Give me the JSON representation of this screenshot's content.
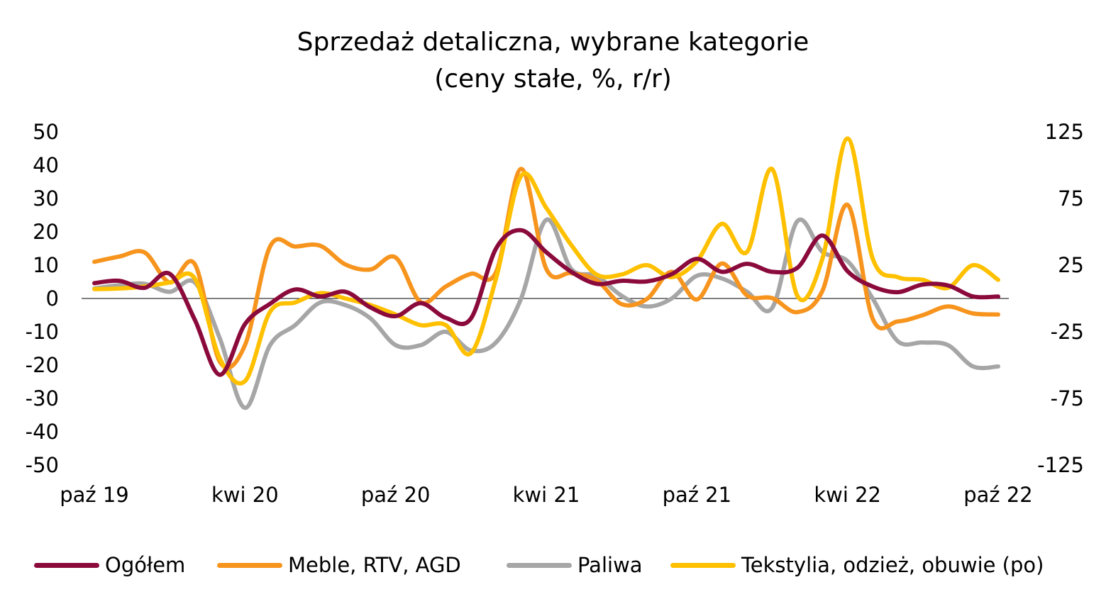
{
  "chart_data": {
    "type": "line",
    "title": "Sprzedaż detaliczna, wybrane kategorie",
    "subtitle": "(ceny stałe, %, r/r)",
    "x": [
      "paź 19",
      "lis 19",
      "gru 19",
      "sty 20",
      "lut 20",
      "mar 20",
      "kwi 20",
      "maj 20",
      "cze 20",
      "lip 20",
      "sie 20",
      "wrz 20",
      "paź 20",
      "lis 20",
      "gru 20",
      "sty 21",
      "lut 21",
      "mar 21",
      "kwi 21",
      "maj 21",
      "cze 21",
      "lip 21",
      "sie 21",
      "wrz 21",
      "paź 21",
      "lis 21",
      "gru 21",
      "sty 22",
      "lut 22",
      "mar 22",
      "kwi 22",
      "maj 22",
      "cze 22",
      "lip 22",
      "sie 22",
      "wrz 22",
      "paź 22"
    ],
    "x_tick_labels": [
      "paź 19",
      "kwi 20",
      "paź 20",
      "kwi 21",
      "paź 21",
      "kwi 22",
      "paź 22"
    ],
    "y_left": {
      "ylim": [
        -50,
        50
      ],
      "ticks": [
        "50",
        "40",
        "30",
        "20",
        "10",
        "0",
        "-10",
        "-20",
        "-30",
        "-40",
        "-50"
      ]
    },
    "y_right": {
      "ylim": [
        -125,
        125
      ],
      "ticks": [
        "125",
        "75",
        "25",
        "-25",
        "-75",
        "-125"
      ]
    },
    "grid": false,
    "legend_position": "bottom",
    "series": [
      {
        "name": "Ogółem",
        "axis": "left",
        "color": "#8B0A3C",
        "values": [
          4.6,
          5.3,
          3.2,
          7.4,
          -6.4,
          -22.9,
          -7.7,
          -1.6,
          2.7,
          0.6,
          2.0,
          -2.7,
          -5.3,
          -1.4,
          -5.8,
          -6.0,
          15.0,
          20.5,
          13.9,
          8.0,
          4.4,
          5.3,
          5.1,
          7.3,
          11.9,
          8.0,
          10.4,
          8.0,
          9.2,
          18.9,
          8.2,
          3.6,
          1.9,
          4.2,
          3.9,
          0.6,
          0.6
        ]
      },
      {
        "name": "Meble, RTV, AGD",
        "axis": "left",
        "color": "#F7941D",
        "values": [
          11.0,
          12.6,
          13.8,
          4.8,
          10.3,
          -19.0,
          -14.0,
          15.6,
          15.6,
          15.8,
          10.2,
          8.7,
          12.3,
          -1.1,
          3.6,
          7.4,
          7.9,
          38.9,
          8.9,
          7.6,
          5.5,
          -1.7,
          -0.2,
          8.0,
          -0.3,
          10.5,
          0.9,
          0.1,
          -4.1,
          2.3,
          28.1,
          -6.1,
          -6.9,
          -5.0,
          -2.4,
          -4.5,
          -4.8
        ]
      },
      {
        "name": "Paliwa",
        "axis": "right",
        "color": "#A6A6A6",
        "values": [
          7.5,
          10.0,
          11.0,
          5.0,
          12.0,
          -30.0,
          -82.0,
          -35.0,
          -20.0,
          -3.0,
          -5.0,
          -15.0,
          -35.0,
          -35.0,
          -25.0,
          -39.0,
          -33.0,
          0.0,
          59.0,
          22.0,
          17.0,
          2.0,
          -6.0,
          0.0,
          17.0,
          15.0,
          5.0,
          -7.0,
          58.0,
          35.0,
          28.0,
          0.0,
          -32.0,
          -33.0,
          -35.0,
          -51.0,
          -51.0
        ]
      },
      {
        "name": "Tekstylia, odzież, obuwie (po)",
        "axis": "right",
        "color": "#FFC000",
        "values": [
          7.0,
          7.5,
          9.0,
          12.0,
          15.0,
          -45.0,
          -62.0,
          -10.0,
          -3.0,
          4.0,
          0.0,
          -5.0,
          -12.0,
          -20.0,
          -20.0,
          -41.0,
          15.0,
          92.0,
          68.0,
          40.0,
          18.0,
          18.0,
          25.0,
          16.0,
          28.0,
          56.0,
          35.0,
          97.0,
          2.0,
          30.0,
          120.0,
          30.0,
          16.0,
          14.0,
          8.0,
          25.0,
          14.0
        ]
      }
    ]
  }
}
